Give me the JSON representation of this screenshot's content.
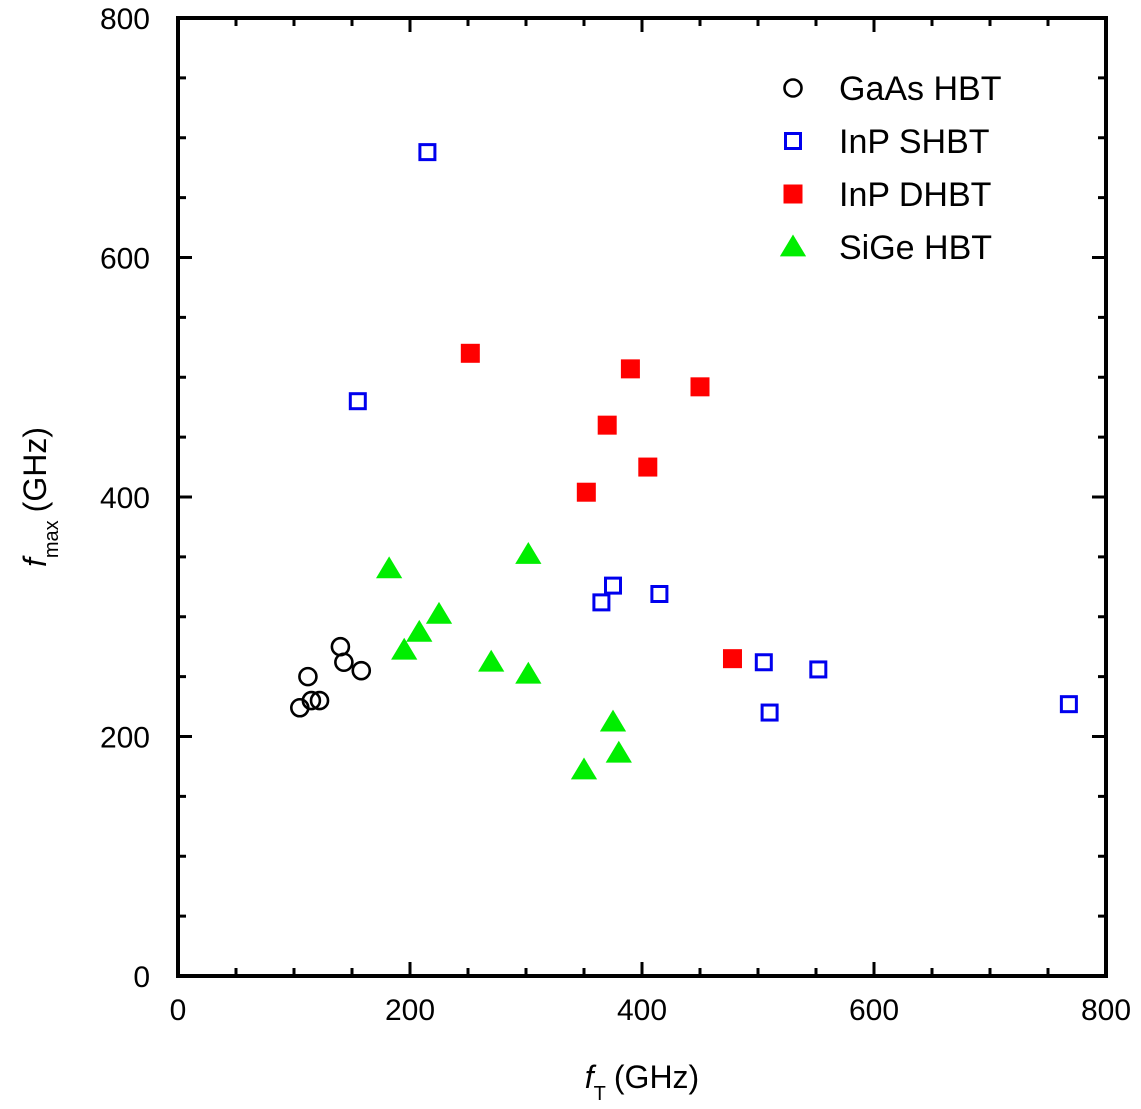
{
  "chart_data": {
    "type": "scatter",
    "title": "",
    "xlabel": {
      "symbol": "f",
      "subscript": "T",
      "unit": "(GHz)"
    },
    "ylabel": {
      "symbol": "f",
      "subscript": "max",
      "unit": "(GHz)"
    },
    "xlim": [
      0,
      800
    ],
    "ylim": [
      0,
      800
    ],
    "xticks": [
      0,
      200,
      400,
      600,
      800
    ],
    "yticks": [
      0,
      200,
      400,
      600,
      800
    ],
    "xminor_step": 50,
    "yminor_step": 50,
    "grid": false,
    "legend_position": "top-right",
    "series": [
      {
        "name": "GaAs HBT",
        "marker": "circle-open",
        "color": "#000000",
        "points": [
          [
            105,
            224
          ],
          [
            112,
            250
          ],
          [
            115,
            230
          ],
          [
            122,
            230
          ],
          [
            140,
            275
          ],
          [
            143,
            262
          ],
          [
            158,
            255
          ]
        ]
      },
      {
        "name": "InP SHBT",
        "marker": "square-open",
        "color": "#0000ee",
        "points": [
          [
            215,
            688
          ],
          [
            155,
            480
          ],
          [
            365,
            312
          ],
          [
            375,
            326
          ],
          [
            415,
            319
          ],
          [
            505,
            262
          ],
          [
            510,
            220
          ],
          [
            552,
            256
          ],
          [
            768,
            227
          ]
        ]
      },
      {
        "name": "InP DHBT",
        "marker": "square-filled",
        "color": "#ff0000",
        "points": [
          [
            252,
            520
          ],
          [
            390,
            507
          ],
          [
            450,
            492
          ],
          [
            370,
            460
          ],
          [
            405,
            425
          ],
          [
            352,
            404
          ],
          [
            478,
            265
          ]
        ]
      },
      {
        "name": "SiGe HBT",
        "marker": "triangle-filled",
        "color": "#00ee00",
        "points": [
          [
            182,
            340
          ],
          [
            302,
            352
          ],
          [
            225,
            302
          ],
          [
            208,
            287
          ],
          [
            195,
            272
          ],
          [
            270,
            262
          ],
          [
            302,
            252
          ],
          [
            375,
            212
          ],
          [
            380,
            186
          ],
          [
            350,
            172
          ]
        ]
      }
    ]
  }
}
